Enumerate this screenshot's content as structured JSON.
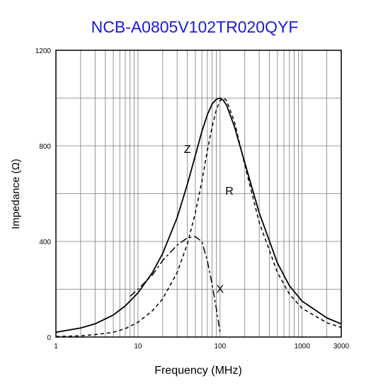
{
  "chart_data": {
    "type": "line",
    "title": "NCB-A0805V102TR020QYF",
    "xlabel": "Frequency (MHz)",
    "ylabel": "Impedance (Ω)",
    "x_scale": "log",
    "xlim": [
      1,
      3000
    ],
    "ylim": [
      0,
      1200
    ],
    "x_ticks": [
      1,
      10,
      100,
      1000,
      3000
    ],
    "x_tick_labels": [
      "1",
      "10",
      "100",
      "1000",
      "3000"
    ],
    "y_ticks": [
      0,
      400,
      800,
      1200
    ],
    "y_tick_labels": [
      "0",
      "400",
      "800",
      "1200"
    ],
    "grid": true,
    "series": [
      {
        "name": "Z",
        "style": "solid",
        "x": [
          1,
          2,
          3,
          5,
          7,
          10,
          15,
          20,
          30,
          40,
          50,
          60,
          70,
          80,
          90,
          100,
          110,
          120,
          150,
          200,
          300,
          500,
          700,
          1000,
          2000,
          3000
        ],
        "values": [
          20,
          38,
          55,
          92,
          130,
          185,
          270,
          350,
          500,
          640,
          760,
          860,
          930,
          975,
          995,
          1000,
          990,
          970,
          880,
          730,
          520,
          310,
          215,
          150,
          80,
          55
        ]
      },
      {
        "name": "R",
        "style": "dashed",
        "x": [
          1,
          2,
          3,
          5,
          7,
          10,
          15,
          20,
          30,
          40,
          50,
          60,
          70,
          80,
          90,
          100,
          110,
          120,
          150,
          200,
          300,
          500,
          700,
          1000,
          2000,
          3000
        ],
        "values": [
          2,
          5,
          10,
          20,
          35,
          62,
          110,
          160,
          270,
          390,
          520,
          650,
          780,
          880,
          950,
          990,
          1000,
          990,
          900,
          720,
          480,
          270,
          180,
          120,
          60,
          40
        ]
      },
      {
        "name": "X",
        "style": "dashdot",
        "x": [
          8,
          10,
          15,
          20,
          30,
          40,
          50,
          60,
          70,
          80,
          90,
          100
        ],
        "values": [
          170,
          200,
          260,
          320,
          385,
          415,
          420,
          400,
          320,
          220,
          120,
          20
        ]
      }
    ],
    "annotations": [
      {
        "text": "Z",
        "x": 40,
        "y": 770
      },
      {
        "text": "R",
        "x": 130,
        "y": 595
      },
      {
        "text": "X",
        "x": 100,
        "y": 185
      }
    ]
  }
}
